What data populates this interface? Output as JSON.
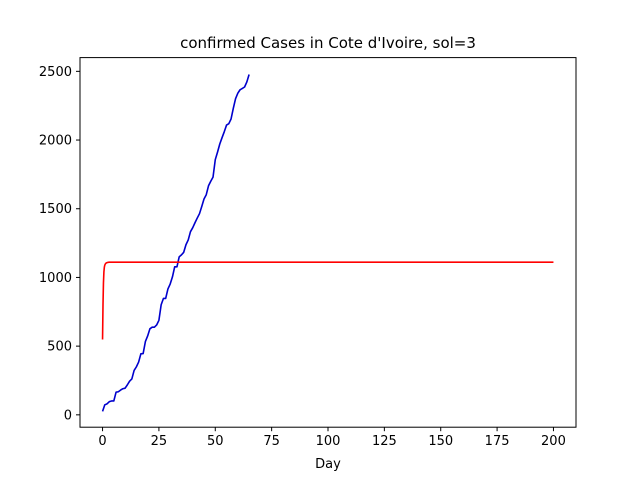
{
  "chart_data": {
    "type": "line",
    "title": "confirmed Cases in Cote d'Ivoire, sol=3",
    "xlabel": "Day",
    "ylabel": "",
    "xlim": [
      -10,
      210
    ],
    "ylim": [
      -90,
      2600
    ],
    "xticks": [
      0,
      25,
      50,
      75,
      100,
      125,
      150,
      175,
      200
    ],
    "yticks": [
      0,
      500,
      1000,
      1500,
      2000,
      2500
    ],
    "grid": false,
    "series": [
      {
        "color": "#0000cd",
        "x": [
          0,
          1,
          2,
          3,
          4,
          5,
          6,
          7,
          8,
          9,
          10,
          11,
          12,
          13,
          14,
          15,
          16,
          17,
          18,
          19,
          20,
          21,
          22,
          23,
          24,
          25,
          26,
          27,
          28,
          29,
          30,
          31,
          32,
          33,
          34,
          35,
          36,
          37,
          38,
          39,
          40,
          41,
          42,
          43,
          44,
          45,
          46,
          47,
          48,
          49,
          50,
          51,
          52,
          53,
          54,
          55,
          56,
          57,
          58,
          59,
          60,
          61,
          62,
          63,
          64,
          65
        ],
        "y": [
          25,
          73,
          80,
          96,
          101,
          101,
          165,
          168,
          180,
          190,
          194,
          218,
          245,
          261,
          323,
          349,
          384,
          444,
          446,
          533,
          574,
          626,
          638,
          638,
          654,
          688,
          801,
          847,
          847,
          916,
          952,
          1004,
          1077,
          1077,
          1150,
          1164,
          1183,
          1238,
          1273,
          1333,
          1362,
          1398,
          1432,
          1464,
          1516,
          1571,
          1602,
          1667,
          1700,
          1730,
          1857,
          1912,
          1971,
          2017,
          2061,
          2109,
          2119,
          2153,
          2231,
          2301,
          2341,
          2366,
          2376,
          2386,
          2423,
          2477
        ]
      },
      {
        "color": "#ff0000",
        "x": [
          0,
          0.2,
          0.4,
          0.6,
          0.8,
          1,
          1.3,
          1.6,
          2,
          2.5,
          3,
          4,
          5,
          6,
          8,
          10,
          20,
          50,
          100,
          150,
          200
        ],
        "y": [
          548,
          800,
          960,
          1040,
          1075,
          1090,
          1100,
          1105,
          1108,
          1110,
          1111,
          1111,
          1111,
          1111,
          1111,
          1111,
          1111,
          1111,
          1111,
          1111,
          1111
        ]
      }
    ]
  }
}
